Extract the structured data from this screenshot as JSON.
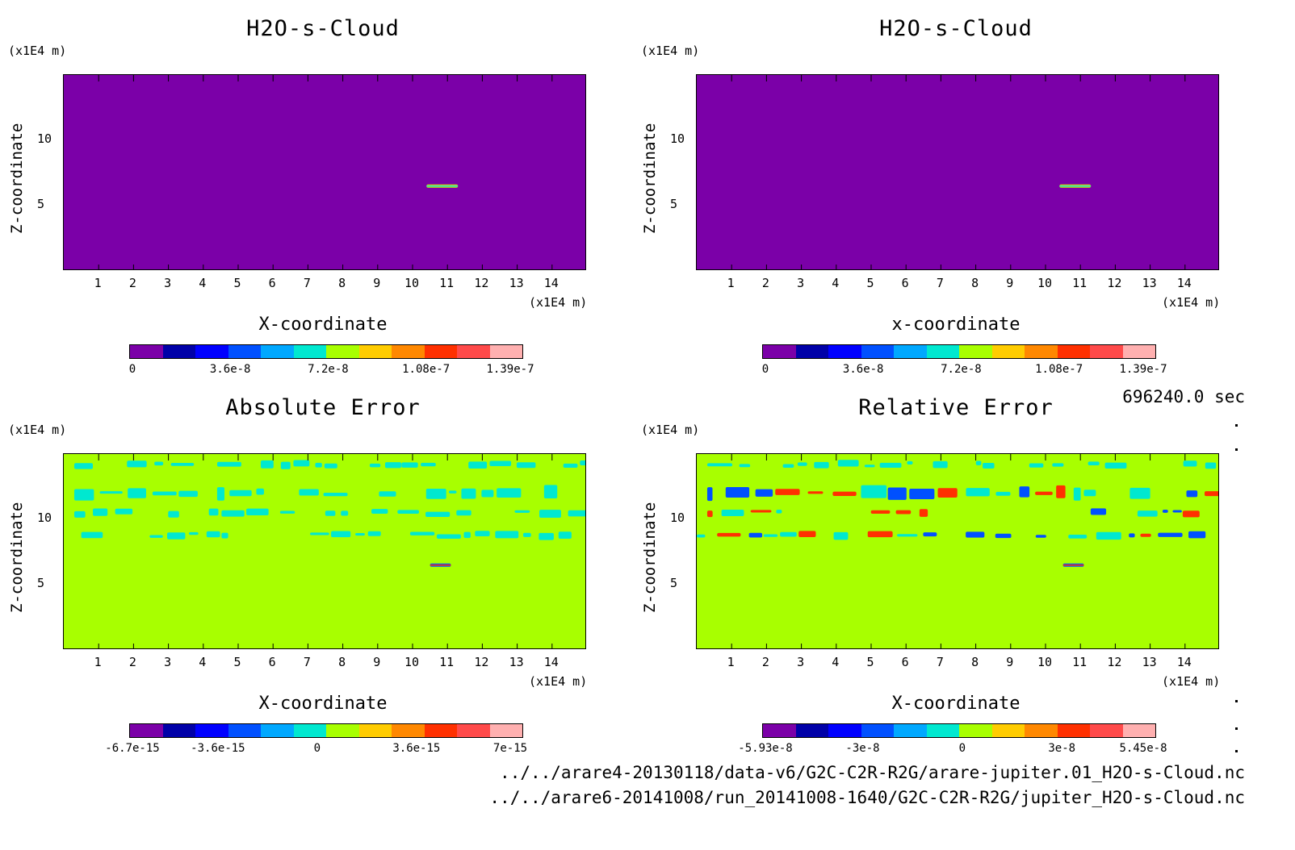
{
  "time_label": "696240.0 sec",
  "file_1": "../../arare4-20130118/data-v6/G2C-C2R-R2G/arare-jupiter.01_H2O-s-Cloud.nc",
  "file_2": "../../arare6-20141008/run_20141008-1640/G2C-C2R-R2G/jupiter_H2O-s-Cloud.nc",
  "colors": {
    "scale": [
      "#7b00a8",
      "#0000a8",
      "#0000ff",
      "#0050ff",
      "#00a8ff",
      "#00e8d0",
      "#a8ff00",
      "#ffcc00",
      "#ff8800",
      "#ff3000",
      "#ff4a4a",
      "#ffb0b0"
    ],
    "bg_cloud": "#7b00a8",
    "bg_error": "#a8ff00",
    "cyan": "#00e8d0",
    "blue": "#0050ff",
    "red": "#ff3000"
  },
  "chart_data": [
    {
      "type": "heatmap",
      "title": "H2O-s-Cloud",
      "xlabel": "X-coordinate",
      "ylabel": "Z-coordinate",
      "x_unit": "(x1E4 m)",
      "y_unit": "(x1E4 m)",
      "xticks": [
        "1",
        "2",
        "3",
        "4",
        "5",
        "6",
        "7",
        "8",
        "9",
        "10",
        "11",
        "12",
        "13",
        "14"
      ],
      "yticks": [
        "5",
        "10"
      ],
      "xlim": [
        0,
        15
      ],
      "ylim": [
        0,
        15
      ],
      "colorbar_ticks": [
        "0",
        "3.6e-8",
        "7.2e-8",
        "1.08e-7",
        "1.39e-7"
      ],
      "colorbar_range": [
        0,
        1.39e-07
      ],
      "features": [
        {
          "kind": "streak",
          "x": [
            10.4,
            11.3
          ],
          "z": 6.5,
          "level": "max"
        }
      ]
    },
    {
      "type": "heatmap",
      "title": "H2O-s-Cloud",
      "xlabel": "x-coordinate",
      "ylabel": "Z-coordinate",
      "x_unit": "(x1E4 m)",
      "y_unit": "(x1E4 m)",
      "xticks": [
        "1",
        "2",
        "3",
        "4",
        "5",
        "6",
        "7",
        "8",
        "9",
        "10",
        "11",
        "12",
        "13",
        "14"
      ],
      "yticks": [
        "5",
        "10"
      ],
      "xlim": [
        0,
        15
      ],
      "ylim": [
        0,
        15
      ],
      "colorbar_ticks": [
        "0",
        "3.6e-8",
        "7.2e-8",
        "1.08e-7",
        "1.39e-7"
      ],
      "colorbar_range": [
        0,
        1.39e-07
      ],
      "features": [
        {
          "kind": "streak",
          "x": [
            10.4,
            11.3
          ],
          "z": 6.5,
          "level": "max"
        }
      ]
    },
    {
      "type": "heatmap",
      "title": "Absolute Error",
      "xlabel": "X-coordinate",
      "ylabel": "Z-coordinate",
      "x_unit": "(x1E4 m)",
      "y_unit": "(x1E4 m)",
      "xticks": [
        "1",
        "2",
        "3",
        "4",
        "5",
        "6",
        "7",
        "8",
        "9",
        "10",
        "11",
        "12",
        "13",
        "14"
      ],
      "yticks": [
        "5",
        "10"
      ],
      "xlim": [
        0,
        15
      ],
      "ylim": [
        0,
        15
      ],
      "colorbar_ticks": [
        "-6.7e-15",
        "-3.6e-15",
        "0",
        "3.6e-15",
        "7e-15"
      ],
      "colorbar_range": [
        -6.7e-15,
        7e-15
      ],
      "features": [
        {
          "kind": "band",
          "z": 14.2,
          "x": [
            0.3,
            14.8
          ],
          "color": "cyan"
        },
        {
          "kind": "band",
          "z": 12.0,
          "x": [
            0.3,
            14.8
          ],
          "color": "cyan"
        },
        {
          "kind": "band",
          "z": 10.5,
          "x": [
            0.3,
            14.8
          ],
          "color": "cyan"
        },
        {
          "kind": "band",
          "z": 8.8,
          "x": [
            0.5,
            14.8
          ],
          "color": "cyan"
        },
        {
          "kind": "streak",
          "x": [
            10.5,
            11.1
          ],
          "z": 6.5,
          "color": "blue"
        }
      ]
    },
    {
      "type": "heatmap",
      "title": "Relative Error",
      "xlabel": "X-coordinate",
      "ylabel": "Z-coordinate",
      "x_unit": "(x1E4 m)",
      "y_unit": "(x1E4 m)",
      "xticks": [
        "1",
        "2",
        "3",
        "4",
        "5",
        "6",
        "7",
        "8",
        "9",
        "10",
        "11",
        "12",
        "13",
        "14"
      ],
      "yticks": [
        "5",
        "10"
      ],
      "xlim": [
        0,
        15
      ],
      "ylim": [
        0,
        15
      ],
      "colorbar_ticks": [
        "-5.93e-8",
        "-3e-8",
        "0",
        "3e-8",
        "5.45e-8"
      ],
      "colorbar_range": [
        -5.93e-08,
        5.45e-08
      ],
      "features": [
        {
          "kind": "band",
          "z": 14.2,
          "x": [
            0.3,
            14.8
          ],
          "color": "cyan"
        },
        {
          "kind": "band",
          "z": 12.0,
          "x": [
            0.3,
            14.8
          ],
          "color": "mixed"
        },
        {
          "kind": "band",
          "z": 10.5,
          "x": [
            0.3,
            14.8
          ],
          "color": "mixed"
        },
        {
          "kind": "band",
          "z": 8.8,
          "x": [
            0.0,
            14.8
          ],
          "color": "mixed"
        },
        {
          "kind": "streak",
          "x": [
            10.5,
            11.1
          ],
          "z": 6.5,
          "color": "blue"
        }
      ]
    }
  ]
}
